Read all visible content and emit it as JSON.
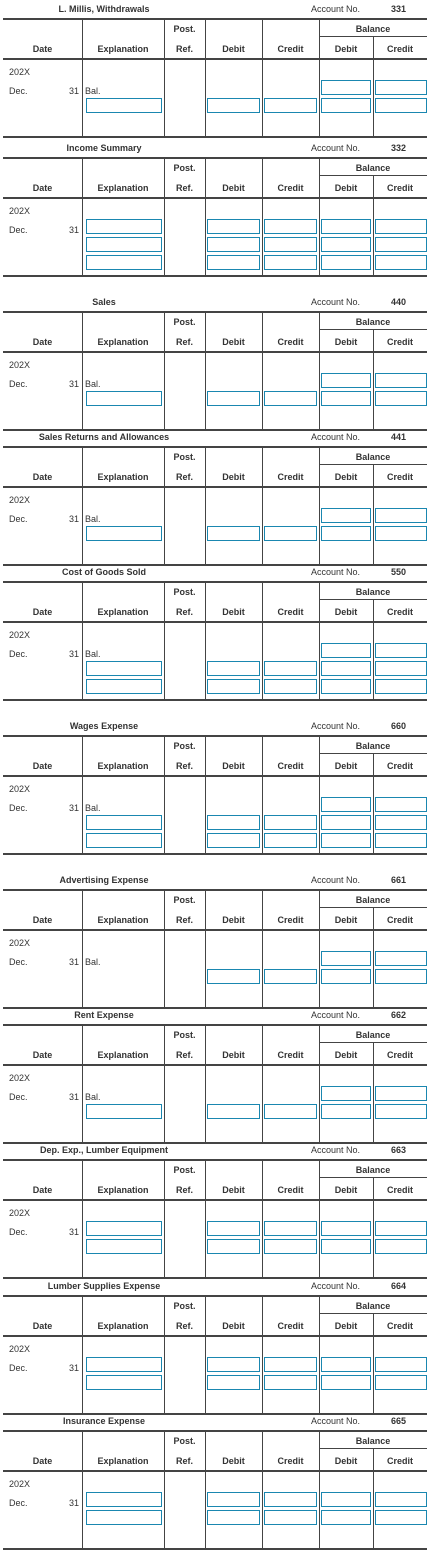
{
  "labels": {
    "account_no": "Account No.",
    "balance": "Balance",
    "post": "Post.",
    "date": "Date",
    "explanation": "Explanation",
    "ref": "Ref.",
    "debit": "Debit",
    "credit": "Credit",
    "year": "202X",
    "month": "Dec.",
    "day": "31"
  },
  "ledgers": [
    {
      "id": "withdrawals",
      "title": "L. Millis, Withdrawals",
      "account_no": "331",
      "bal": "Bal.",
      "rows": [
        {
          "exp": false,
          "debit": false,
          "credit": false,
          "bdebit": true,
          "bcredit": true
        },
        {
          "exp": true,
          "debit": true,
          "credit": true,
          "bdebit": true,
          "bcredit": true
        }
      ]
    },
    {
      "id": "income-summary",
      "title": "Income Summary",
      "account_no": "332",
      "bal": "",
      "rows": [
        {
          "exp": true,
          "debit": true,
          "credit": true,
          "bdebit": true,
          "bcredit": true
        },
        {
          "exp": true,
          "debit": true,
          "credit": true,
          "bdebit": true,
          "bcredit": true
        },
        {
          "exp": true,
          "debit": true,
          "credit": true,
          "bdebit": true,
          "bcredit": true
        }
      ]
    },
    {
      "id": "sales",
      "title": "Sales",
      "account_no": "440",
      "bal": "Bal.",
      "rows": [
        {
          "exp": false,
          "debit": false,
          "credit": false,
          "bdebit": true,
          "bcredit": true
        },
        {
          "exp": true,
          "debit": true,
          "credit": true,
          "bdebit": true,
          "bcredit": true
        }
      ]
    },
    {
      "id": "sales-returns",
      "title": "Sales Returns and Allowances",
      "account_no": "441",
      "bal": "Bal.",
      "rows": [
        {
          "exp": false,
          "debit": false,
          "credit": false,
          "bdebit": true,
          "bcredit": true
        },
        {
          "exp": true,
          "debit": true,
          "credit": true,
          "bdebit": true,
          "bcredit": true
        }
      ]
    },
    {
      "id": "cogs",
      "title": "Cost of Goods Sold",
      "account_no": "550",
      "bal": "Bal.",
      "rows": [
        {
          "exp": false,
          "debit": false,
          "credit": false,
          "bdebit": true,
          "bcredit": true
        },
        {
          "exp": true,
          "debit": true,
          "credit": true,
          "bdebit": true,
          "bcredit": true
        },
        {
          "exp": true,
          "debit": true,
          "credit": true,
          "bdebit": true,
          "bcredit": true
        }
      ]
    },
    {
      "id": "wages-expense",
      "title": "Wages Expense",
      "account_no": "660",
      "bal": "Bal.",
      "rows": [
        {
          "exp": false,
          "debit": false,
          "credit": false,
          "bdebit": true,
          "bcredit": true
        },
        {
          "exp": true,
          "debit": true,
          "credit": true,
          "bdebit": true,
          "bcredit": true
        },
        {
          "exp": true,
          "debit": true,
          "credit": true,
          "bdebit": true,
          "bcredit": true
        }
      ]
    },
    {
      "id": "advertising-expense",
      "title": "Advertising Expense",
      "account_no": "661",
      "bal": "Bal.",
      "rows": [
        {
          "exp": false,
          "debit": false,
          "credit": false,
          "bdebit": true,
          "bcredit": true
        },
        {
          "exp": false,
          "debit": true,
          "credit": true,
          "bdebit": true,
          "bcredit": true
        }
      ]
    },
    {
      "id": "rent-expense",
      "title": "Rent Expense",
      "account_no": "662",
      "bal": "Bal.",
      "rows": [
        {
          "exp": false,
          "debit": false,
          "credit": false,
          "bdebit": true,
          "bcredit": true
        },
        {
          "exp": true,
          "debit": true,
          "credit": true,
          "bdebit": true,
          "bcredit": true
        }
      ]
    },
    {
      "id": "dep-exp-lumber-equipment",
      "title": "Dep. Exp., Lumber Equipment",
      "account_no": "663",
      "bal": "",
      "rows": [
        {
          "exp": true,
          "debit": true,
          "credit": true,
          "bdebit": true,
          "bcredit": true
        },
        {
          "exp": true,
          "debit": true,
          "credit": true,
          "bdebit": true,
          "bcredit": true
        }
      ]
    },
    {
      "id": "lumber-supplies-expense",
      "title": "Lumber Supplies Expense",
      "account_no": "664",
      "bal": "",
      "rows": [
        {
          "exp": true,
          "debit": true,
          "credit": true,
          "bdebit": true,
          "bcredit": true
        },
        {
          "exp": true,
          "debit": true,
          "credit": true,
          "bdebit": true,
          "bcredit": true
        }
      ]
    },
    {
      "id": "insurance-expense",
      "title": "Insurance Expense",
      "account_no": "665",
      "bal": "",
      "rows": [
        {
          "exp": true,
          "debit": true,
          "credit": true,
          "bdebit": true,
          "bcredit": true
        },
        {
          "exp": true,
          "debit": true,
          "credit": true,
          "bdebit": true,
          "bcredit": true
        }
      ]
    }
  ]
}
